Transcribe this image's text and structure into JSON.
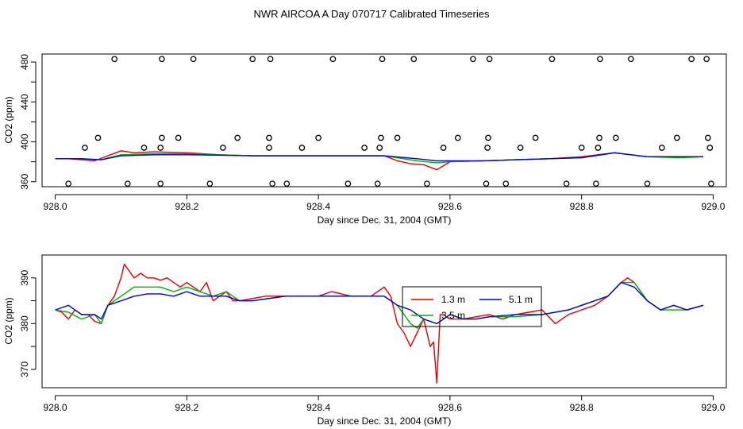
{
  "title": "NWR AIRCOA A  Day 070717  Calibrated Timeseries",
  "colors": {
    "1.3 m": "#e00000",
    "3.5 m": "#00b000",
    "5.1 m": "#0000d0",
    "axis": "#000000",
    "flags": "#000000"
  },
  "chart_data": [
    {
      "type": "line",
      "xlabel": "Day since Dec. 31, 2004 (GMT)",
      "ylabel": "CO2 (ppm)",
      "xlim": [
        927.98,
        929.02
      ],
      "ylim": [
        355,
        488
      ],
      "xticks": [
        928.0,
        928.2,
        928.4,
        928.6,
        928.8,
        929.0
      ],
      "xtick_labels": [
        "928.0",
        "928.2",
        "928.4",
        "928.6",
        "928.8",
        "929.0"
      ],
      "yticks": [
        360,
        400,
        440,
        480
      ],
      "ytick_labels": [
        "360",
        "400",
        "440",
        "480"
      ],
      "series": [
        {
          "name": "1.3 m",
          "x": [
            928.0,
            928.02,
            928.04,
            928.06,
            928.08,
            928.1,
            928.12,
            928.15,
            928.2,
            928.25,
            928.3,
            928.4,
            928.5,
            928.52,
            928.54,
            928.56,
            928.58,
            928.6,
            928.65,
            928.7,
            928.75,
            928.8,
            928.85,
            928.9,
            928.95,
            928.985
          ],
          "values": [
            383,
            383,
            382,
            381,
            386,
            391,
            389,
            390,
            389,
            387,
            386,
            386,
            386,
            381,
            378,
            377,
            372,
            380,
            381,
            382,
            383,
            385,
            389,
            385,
            385,
            385
          ]
        },
        {
          "name": "3.5 m",
          "x": [
            928.0,
            928.04,
            928.07,
            928.1,
            928.15,
            928.2,
            928.3,
            928.4,
            928.5,
            928.55,
            928.58,
            928.6,
            928.65,
            928.7,
            928.8,
            928.85,
            928.9,
            928.95,
            928.985
          ],
          "values": [
            383,
            383,
            382,
            387,
            388,
            388,
            386,
            386,
            386,
            381,
            379,
            380,
            381,
            382,
            384,
            389,
            385,
            384,
            385
          ]
        },
        {
          "name": "5.1 m",
          "x": [
            928.0,
            928.04,
            928.07,
            928.1,
            928.15,
            928.2,
            928.3,
            928.4,
            928.5,
            928.55,
            928.58,
            928.6,
            928.65,
            928.7,
            928.8,
            928.85,
            928.9,
            928.95,
            928.985
          ],
          "values": [
            383,
            383,
            382,
            386,
            387,
            387,
            386,
            386,
            386,
            383,
            381,
            381,
            381,
            382,
            384,
            389,
            385,
            385,
            385
          ]
        }
      ],
      "flag_points": {
        "name": "flags",
        "x": [
          928.02,
          928.045,
          928.065,
          928.09,
          928.11,
          928.135,
          928.16,
          928.16,
          928.162,
          928.162,
          928.187,
          928.21,
          928.235,
          928.255,
          928.277,
          928.3,
          928.325,
          928.325,
          928.327,
          928.33,
          928.352,
          928.375,
          928.4,
          928.422,
          928.445,
          928.47,
          928.49,
          928.493,
          928.495,
          928.497,
          928.52,
          928.545,
          928.565,
          928.59,
          928.612,
          928.635,
          928.655,
          928.657,
          928.658,
          928.66,
          928.685,
          928.707,
          928.73,
          928.755,
          928.777,
          928.8,
          928.822,
          928.825,
          928.827,
          928.828,
          928.852,
          928.875,
          928.9,
          928.922,
          928.945,
          928.967,
          928.99,
          928.992,
          928.995,
          928.997
        ],
        "y": [
          358,
          394,
          404,
          483,
          358,
          394,
          358,
          394,
          404,
          483,
          404,
          483,
          358,
          394,
          404,
          483,
          394,
          404,
          483,
          358,
          358,
          394,
          404,
          483,
          358,
          394,
          358,
          394,
          404,
          483,
          404,
          483,
          358,
          394,
          404,
          483,
          358,
          394,
          404,
          483,
          358,
          394,
          404,
          483,
          358,
          394,
          358,
          394,
          404,
          483,
          404,
          483,
          358,
          394,
          404,
          483,
          483,
          404,
          394,
          358
        ]
      }
    },
    {
      "type": "line",
      "xlabel": "Day since Dec. 31, 2004 (GMT)",
      "ylabel": "CO2 (ppm)",
      "xlim": [
        927.98,
        929.02
      ],
      "ylim": [
        366,
        395
      ],
      "xticks": [
        928.0,
        928.2,
        928.4,
        928.6,
        928.8,
        929.0
      ],
      "xtick_labels": [
        "928.0",
        "928.2",
        "928.4",
        "928.6",
        "928.8",
        "929.0"
      ],
      "yticks": [
        370,
        380,
        390
      ],
      "ytick_labels": [
        "370",
        "380",
        "390"
      ],
      "legend": {
        "placement": "center-right",
        "entries": [
          "1.3 m",
          "3.5 m",
          "5.1 m"
        ]
      },
      "series": [
        {
          "name": "1.3 m",
          "x": [
            928.0,
            928.01,
            928.02,
            928.03,
            928.04,
            928.05,
            928.06,
            928.07,
            928.08,
            928.09,
            928.1,
            928.105,
            928.11,
            928.12,
            928.13,
            928.14,
            928.15,
            928.16,
            928.17,
            928.18,
            928.19,
            928.2,
            928.21,
            928.22,
            928.23,
            928.24,
            928.25,
            928.26,
            928.27,
            928.28,
            928.3,
            928.32,
            928.35,
            928.38,
            928.4,
            928.42,
            928.45,
            928.48,
            928.5,
            928.51,
            928.52,
            928.53,
            928.54,
            928.55,
            928.56,
            928.57,
            928.575,
            928.58,
            928.585,
            928.59,
            928.6,
            928.62,
            928.64,
            928.66,
            928.68,
            928.7,
            928.72,
            928.74,
            928.76,
            928.78,
            928.8,
            928.82,
            928.84,
            928.86,
            928.87,
            928.88,
            928.9,
            928.92,
            928.94,
            928.96,
            928.985
          ],
          "values": [
            383,
            382.5,
            381,
            383,
            382,
            382,
            380.5,
            380,
            384,
            386,
            390,
            393,
            392,
            390,
            391,
            390,
            390,
            389.5,
            390,
            389,
            388,
            389,
            388,
            387,
            389,
            385,
            386,
            387,
            385,
            385,
            385.5,
            386,
            386,
            386,
            386,
            387,
            386,
            386,
            388,
            386,
            380,
            378,
            375,
            378,
            381,
            375,
            376,
            367,
            382,
            382,
            381,
            381,
            381.5,
            382,
            381,
            382,
            382.5,
            383,
            380,
            382,
            383,
            384,
            386,
            389,
            390,
            389,
            385,
            383,
            384,
            383,
            384
          ]
        },
        {
          "name": "3.5 m",
          "x": [
            928.0,
            928.02,
            928.04,
            928.06,
            928.07,
            928.08,
            928.1,
            928.12,
            928.14,
            928.16,
            928.18,
            928.2,
            928.22,
            928.24,
            928.26,
            928.28,
            928.3,
            928.35,
            928.4,
            928.45,
            928.5,
            928.52,
            928.54,
            928.55,
            928.56,
            928.58,
            928.6,
            928.62,
            928.64,
            928.66,
            928.7,
            928.74,
            928.78,
            928.8,
            928.82,
            928.84,
            928.86,
            928.88,
            928.9,
            928.92,
            928.94,
            928.96,
            928.985
          ],
          "values": [
            383,
            382.5,
            381,
            382,
            380,
            384,
            386,
            388,
            388,
            388,
            387,
            388,
            387,
            386,
            387,
            385,
            385,
            386,
            386,
            386,
            386,
            384,
            380,
            379,
            381,
            380,
            382,
            381,
            381,
            381.5,
            381.5,
            382,
            383,
            384,
            385,
            386,
            389,
            389,
            385,
            383,
            383,
            383,
            384
          ]
        },
        {
          "name": "5.1 m",
          "x": [
            928.0,
            928.02,
            928.04,
            928.06,
            928.07,
            928.08,
            928.1,
            928.12,
            928.14,
            928.16,
            928.18,
            928.2,
            928.22,
            928.24,
            928.26,
            928.28,
            928.3,
            928.35,
            928.4,
            928.45,
            928.5,
            928.52,
            928.54,
            928.56,
            928.58,
            928.6,
            928.62,
            928.64,
            928.66,
            928.7,
            928.74,
            928.78,
            928.8,
            928.82,
            928.84,
            928.86,
            928.88,
            928.9,
            928.92,
            928.94,
            928.96,
            928.985
          ],
          "values": [
            383,
            384,
            382,
            382,
            381,
            384,
            385,
            386,
            386.5,
            386.5,
            386,
            387,
            386,
            386,
            386,
            385,
            385,
            386,
            386,
            386,
            386,
            384,
            383,
            381,
            380,
            382,
            381,
            381,
            381.5,
            382,
            382,
            383,
            384,
            385,
            386,
            389,
            388,
            385,
            383,
            384,
            383,
            384
          ]
        }
      ]
    }
  ]
}
